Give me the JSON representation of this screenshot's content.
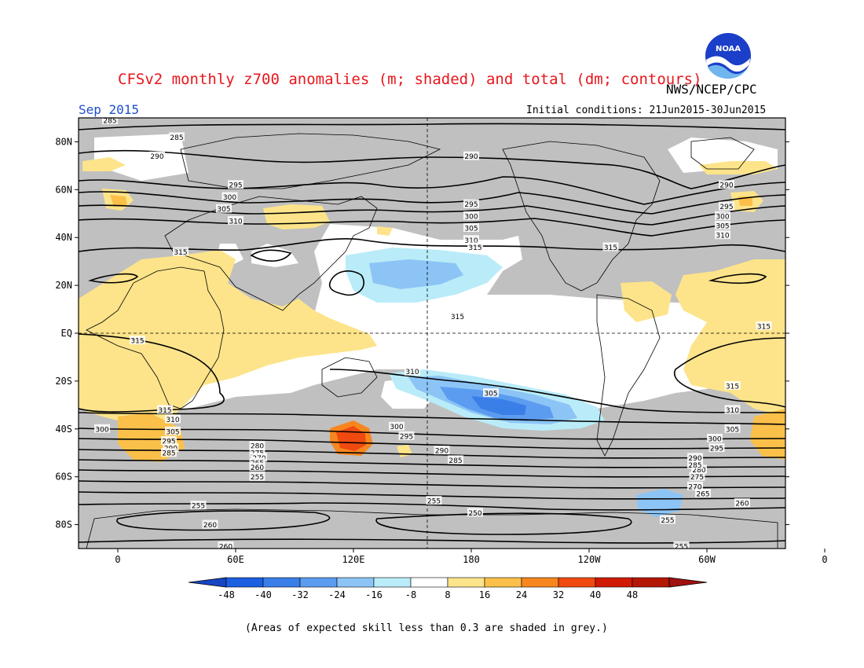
{
  "title": "CFSv2 monthly z700 anomalies (m; shaded) and total (dm; contours)",
  "agency": "NWS/NCEP/CPC",
  "logo_text": "NOAA",
  "valid_month": "Sep 2015",
  "initial_conditions": "Initial conditions: 21Jun2015-30Jun2015",
  "footnote": "(Areas of expected skill less than 0.3 are shaded in grey.)",
  "lat_labels": [
    "80N",
    "60N",
    "40N",
    "20N",
    "EQ",
    "20S",
    "40S",
    "60S",
    "80S"
  ],
  "lon_labels": [
    "0",
    "60E",
    "120E",
    "180",
    "120W",
    "60W",
    "0"
  ],
  "colorbar": {
    "labels": [
      "-48",
      "-40",
      "-32",
      "-24",
      "-16",
      "-8",
      "8",
      "16",
      "24",
      "32",
      "40",
      "48"
    ],
    "colors": [
      "#1c5fe0",
      "#3a7ee8",
      "#5c9cf0",
      "#8cc4f6",
      "#b9ecf8",
      "#ffffff",
      "#fde48a",
      "#fbc04a",
      "#f7861f",
      "#f04a10",
      "#d01a05",
      "#b31804"
    ],
    "low_end_color": "#1646c4",
    "high_end_color": "#a01010"
  },
  "contour_labels": [
    {
      "text": "285",
      "lon": 30,
      "lat": 82
    },
    {
      "text": "290",
      "lon": 20,
      "lat": 74
    },
    {
      "text": "295",
      "lon": 60,
      "lat": 62
    },
    {
      "text": "300",
      "lon": 57,
      "lat": 57
    },
    {
      "text": "305",
      "lon": 54,
      "lat": 52
    },
    {
      "text": "310",
      "lon": 60,
      "lat": 47
    },
    {
      "text": "315",
      "lon": 32,
      "lat": 34
    },
    {
      "text": "290",
      "lon": 180,
      "lat": 74
    },
    {
      "text": "295",
      "lon": 180,
      "lat": 54
    },
    {
      "text": "300",
      "lon": 180,
      "lat": 49
    },
    {
      "text": "305",
      "lon": 180,
      "lat": 44
    },
    {
      "text": "310",
      "lon": 180,
      "lat": 39
    },
    {
      "text": "315",
      "lon": 182,
      "lat": 36
    },
    {
      "text": "290",
      "lon": -50,
      "lat": 62
    },
    {
      "text": "295",
      "lon": -50,
      "lat": 53
    },
    {
      "text": "300",
      "lon": -52,
      "lat": 49
    },
    {
      "text": "305",
      "lon": -52,
      "lat": 45
    },
    {
      "text": "310",
      "lon": -52,
      "lat": 41
    },
    {
      "text": "315",
      "lon": -109,
      "lat": 36
    },
    {
      "text": "285",
      "lon": -4,
      "lat": 89
    },
    {
      "text": "315",
      "lon": 10,
      "lat": -3
    },
    {
      "text": "315",
      "lon": -31,
      "lat": 3
    },
    {
      "text": "315",
      "lon": 173,
      "lat": 7
    },
    {
      "text": "310",
      "lon": 150,
      "lat": -16
    },
    {
      "text": "305",
      "lon": 190,
      "lat": -25
    },
    {
      "text": "315",
      "lon": 24,
      "lat": -32
    },
    {
      "text": "310",
      "lon": 28,
      "lat": -36
    },
    {
      "text": "305",
      "lon": 28,
      "lat": -41
    },
    {
      "text": "300",
      "lon": -8,
      "lat": -40
    },
    {
      "text": "295",
      "lon": 26,
      "lat": -45
    },
    {
      "text": "290",
      "lon": 27,
      "lat": -48
    },
    {
      "text": "285",
      "lon": 26,
      "lat": -50
    },
    {
      "text": "300",
      "lon": 142,
      "lat": -39
    },
    {
      "text": "295",
      "lon": 147,
      "lat": -43
    },
    {
      "text": "290",
      "lon": 165,
      "lat": -49
    },
    {
      "text": "285",
      "lon": 172,
      "lat": -53
    },
    {
      "text": "280",
      "lon": 71,
      "lat": -47
    },
    {
      "text": "275",
      "lon": 71,
      "lat": -50
    },
    {
      "text": "270",
      "lon": 72,
      "lat": -52
    },
    {
      "text": "265",
      "lon": 71,
      "lat": -54
    },
    {
      "text": "260",
      "lon": 71,
      "lat": -56
    },
    {
      "text": "255",
      "lon": 71,
      "lat": -60
    },
    {
      "text": "255",
      "lon": 41,
      "lat": -72
    },
    {
      "text": "260",
      "lon": 47,
      "lat": -80
    },
    {
      "text": "260",
      "lon": 55,
      "lat": -89
    },
    {
      "text": "255",
      "lon": 161,
      "lat": -70
    },
    {
      "text": "250",
      "lon": 182,
      "lat": -75
    },
    {
      "text": "255",
      "lon": -80,
      "lat": -78
    },
    {
      "text": "255",
      "lon": -73,
      "lat": -89
    },
    {
      "text": "260",
      "lon": -42,
      "lat": -71
    },
    {
      "text": "265",
      "lon": -62,
      "lat": -67
    },
    {
      "text": "270",
      "lon": -66,
      "lat": -64
    },
    {
      "text": "275",
      "lon": -65,
      "lat": -60
    },
    {
      "text": "280",
      "lon": -64,
      "lat": -57
    },
    {
      "text": "285",
      "lon": -66,
      "lat": -55
    },
    {
      "text": "290",
      "lon": -66,
      "lat": -52
    },
    {
      "text": "295",
      "lon": -55,
      "lat": -48
    },
    {
      "text": "300",
      "lon": -56,
      "lat": -44
    },
    {
      "text": "305",
      "lon": -47,
      "lat": -40
    },
    {
      "text": "310",
      "lon": -47,
      "lat": -32
    },
    {
      "text": "315",
      "lon": -47,
      "lat": -22
    }
  ]
}
